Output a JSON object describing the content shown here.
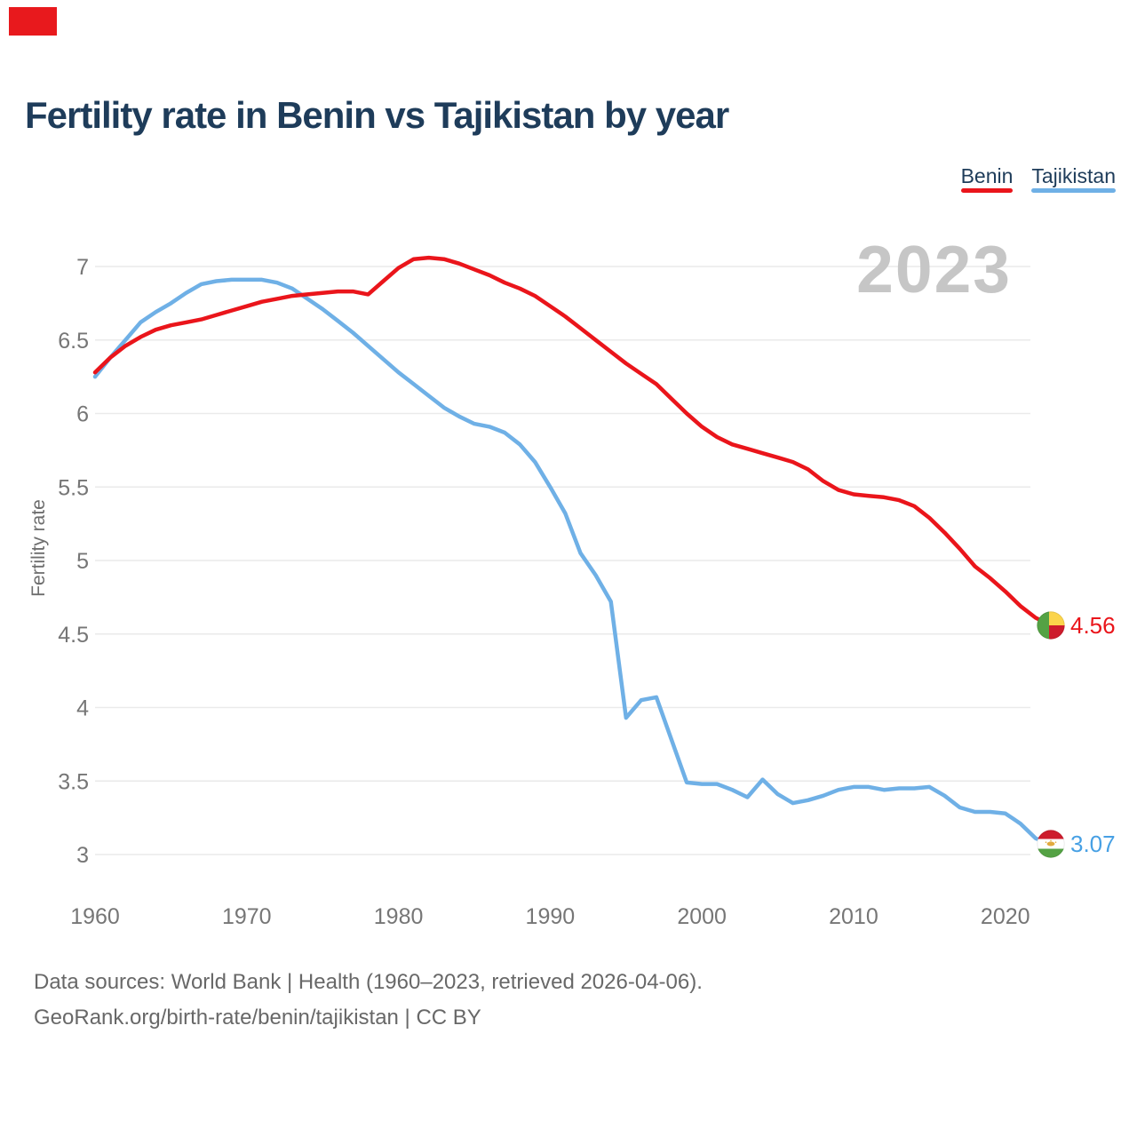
{
  "title": "Fertility rate in Benin vs Tajikistan by year",
  "watermark": "2023",
  "legend": {
    "position": "top-right",
    "items": [
      {
        "label": "Benin",
        "key": "benin"
      },
      {
        "label": "Tajikistan",
        "key": "tajikistan"
      }
    ]
  },
  "footer": {
    "line1": "Data sources: World Bank | Health (1960–2023, retrieved 2026-04-06).",
    "line2": "GeoRank.org/birth-rate/benin/tajikistan | CC BY"
  },
  "icons": {
    "benin_marker": "benin-flag-circle-icon",
    "tajikistan_marker": "tajikistan-flag-circle-icon"
  },
  "colors": {
    "benin": "#ea151b",
    "tajikistan": "#6fb0e6",
    "tajikistan-value": "#47a0e4",
    "navy": "#1e3c5a",
    "tick-gray": "#767676",
    "axis-gray": "#6e6e6e",
    "footer-gray": "#686868",
    "watermark-gray": "#c6c6c6",
    "gridline": "#eaeaea",
    "marker-red": "#e8191d",
    "flag-green": "#54a244",
    "flag-yellow": "#fbd44b",
    "flag-red": "#cd1b2c",
    "flag-gold": "#e2aa3e"
  },
  "chart_data": {
    "type": "line",
    "title": "Fertility rate in Benin vs Tajikistan by year",
    "xlabel": "",
    "y_label": "Fertility rate",
    "grid": "horizontal",
    "legend_position": "top-right",
    "x_ticks": [
      1960,
      1970,
      1980,
      1990,
      2000,
      2010,
      2020
    ],
    "y_ticks": [
      7,
      6.5,
      6,
      5.5,
      5,
      4.5,
      4,
      3.5,
      3
    ],
    "ylim": [
      3,
      7
    ],
    "xlim": [
      1960,
      2023
    ],
    "end_labels": {
      "benin": "4.56",
      "tajikistan": "3.07"
    },
    "x": [
      1960,
      1961,
      1962,
      1963,
      1964,
      1965,
      1966,
      1967,
      1968,
      1969,
      1970,
      1971,
      1972,
      1973,
      1974,
      1975,
      1976,
      1977,
      1978,
      1979,
      1980,
      1981,
      1982,
      1983,
      1984,
      1985,
      1986,
      1987,
      1988,
      1989,
      1990,
      1991,
      1992,
      1993,
      1994,
      1995,
      1996,
      1997,
      1998,
      1999,
      2000,
      2001,
      2002,
      2003,
      2004,
      2005,
      2006,
      2007,
      2008,
      2009,
      2010,
      2011,
      2012,
      2013,
      2014,
      2015,
      2016,
      2017,
      2018,
      2019,
      2020,
      2021,
      2022,
      2023
    ],
    "series": [
      {
        "name": "Benin",
        "key": "benin",
        "values": [
          6.28,
          6.38,
          6.46,
          6.52,
          6.57,
          6.6,
          6.62,
          6.64,
          6.67,
          6.7,
          6.73,
          6.76,
          6.78,
          6.8,
          6.81,
          6.82,
          6.83,
          6.83,
          6.81,
          6.9,
          6.99,
          7.05,
          7.06,
          7.05,
          7.02,
          6.98,
          6.94,
          6.89,
          6.85,
          6.8,
          6.73,
          6.66,
          6.58,
          6.5,
          6.42,
          6.34,
          6.27,
          6.2,
          6.1,
          6.0,
          5.91,
          5.84,
          5.79,
          5.76,
          5.73,
          5.7,
          5.67,
          5.62,
          5.54,
          5.48,
          5.45,
          5.44,
          5.43,
          5.41,
          5.37,
          5.29,
          5.19,
          5.08,
          4.96,
          4.88,
          4.79,
          4.69,
          4.61,
          4.56
        ]
      },
      {
        "name": "Tajikistan",
        "key": "tajikistan",
        "values": [
          6.25,
          6.38,
          6.5,
          6.62,
          6.69,
          6.75,
          6.82,
          6.88,
          6.9,
          6.91,
          6.91,
          6.91,
          6.89,
          6.85,
          6.78,
          6.71,
          6.63,
          6.55,
          6.46,
          6.37,
          6.28,
          6.2,
          6.12,
          6.04,
          5.98,
          5.93,
          5.91,
          5.87,
          5.79,
          5.67,
          5.5,
          5.32,
          5.05,
          4.9,
          4.72,
          3.93,
          4.05,
          4.07,
          3.78,
          3.49,
          3.48,
          3.48,
          3.44,
          3.39,
          3.51,
          3.41,
          3.35,
          3.37,
          3.4,
          3.44,
          3.46,
          3.46,
          3.44,
          3.45,
          3.45,
          3.46,
          3.4,
          3.32,
          3.29,
          3.29,
          3.28,
          3.21,
          3.11,
          3.07
        ]
      }
    ]
  }
}
